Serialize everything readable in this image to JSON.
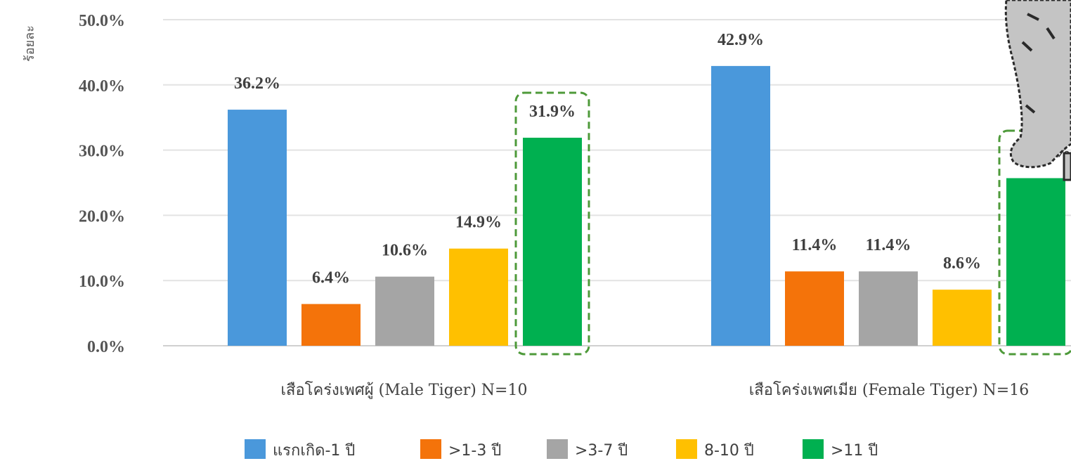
{
  "chart_data": {
    "type": "bar",
    "ylabel": "ร้อยละ",
    "ylim": [
      0,
      50
    ],
    "y_ticks": [
      "0.0%",
      "10.0%",
      "20.0%",
      "30.0%",
      "40.0%",
      "50.0%"
    ],
    "categories": [
      "เสือโคร่งเพศผู้ (Male Tiger) N=10",
      "เสือโคร่งเพศเมีย (Female Tiger) N=16"
    ],
    "series": [
      {
        "name": "แรกเกิด-1 ปี",
        "color": "#4A98DB",
        "values": [
          36.2,
          42.9
        ],
        "labels": [
          "36.2%",
          "42.9%"
        ]
      },
      {
        "name": ">1-3 ปี",
        "color": "#F4730A",
        "values": [
          6.4,
          11.4
        ],
        "labels": [
          "6.4%",
          "11.4%"
        ]
      },
      {
        "name": ">3-7 ปี",
        "color": "#A5A5A5",
        "values": [
          10.6,
          11.4
        ],
        "labels": [
          "10.6%",
          "11.4%"
        ]
      },
      {
        "name": "8-10 ปี",
        "color": "#FFC000",
        "values": [
          14.9,
          8.6
        ],
        "labels": [
          "14.9%",
          "8.6%"
        ]
      },
      {
        "name": ">11 ปี",
        "color": "#00B050",
        "values": [
          31.9,
          25.7
        ],
        "labels": [
          "31.9%",
          "%"
        ]
      }
    ],
    "highlight_series": ">11 ปี",
    "highlight_color": "#4E9A3A",
    "grid": true,
    "legend_position": "bottom"
  }
}
